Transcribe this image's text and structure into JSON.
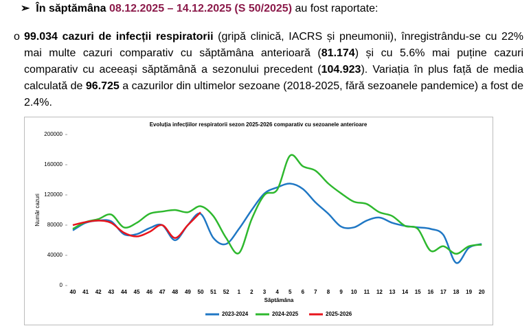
{
  "header": {
    "bullet": "➢",
    "lead": "În săptămâna",
    "period": "08.12.2025 – 14.12.2025 (S 50/2025)",
    "tail": "au fost raportate:"
  },
  "paragraph": {
    "bullet": "o",
    "segments": [
      "99.034 cazuri de infecții respiratorii",
      " (gripă clinică, IACRS și pneumonii), înregistrându-se cu 22% mai multe cazuri comparativ cu săptămâna anterioară (",
      "81.174",
      ") și cu 5.6% mai puține cazuri comparativ cu aceeași săptămână a sezonului precedent (",
      "104.923",
      "). Variația în plus față de media calculată de ",
      "96.725",
      " a cazurilor din ultimelor sezoane (2018-2025, fără sezoanele pandemice) a fost de 2.4%."
    ]
  },
  "chart_data": {
    "type": "line",
    "title": "Evoluția infecțiilor respiratorii sezon 2025-2026 comparativ cu sezoanele anterioare",
    "x_label": "Săptămâna",
    "y_label": "Număr cazuri",
    "categories": [
      "40",
      "41",
      "42",
      "43",
      "44",
      "45",
      "46",
      "47",
      "48",
      "49",
      "50",
      "51",
      "52",
      "1",
      "2",
      "3",
      "4",
      "5",
      "6",
      "7",
      "8",
      "9",
      "10",
      "11",
      "12",
      "13",
      "14",
      "15",
      "16",
      "17",
      "18",
      "19",
      "20"
    ],
    "series": [
      {
        "name": "2023-2024",
        "color": "#1f77c4",
        "values": [
          73000,
          83000,
          86000,
          85000,
          68000,
          68000,
          76000,
          80000,
          60000,
          80000,
          95000,
          63000,
          55000,
          75000,
          100000,
          122000,
          130000,
          135000,
          128000,
          110000,
          95000,
          78000,
          77000,
          86000,
          90000,
          83000,
          79000,
          77000,
          75000,
          67000,
          30000,
          50000,
          55000
        ]
      },
      {
        "name": "2024-2025",
        "color": "#2eb82e",
        "values": [
          75000,
          84000,
          88000,
          94000,
          77000,
          83000,
          95000,
          98000,
          100000,
          97000,
          105000,
          92000,
          63000,
          43000,
          88000,
          120000,
          127000,
          172000,
          158000,
          152000,
          135000,
          122000,
          111000,
          108000,
          97000,
          92000,
          79000,
          75000,
          46000,
          52000,
          42000,
          52000,
          54000
        ]
      },
      {
        "name": "2025-2026",
        "color": "#e8141c",
        "values": [
          80000,
          84000,
          86000,
          83000,
          70000,
          65000,
          71000,
          80000,
          63000,
          80000,
          97000,
          null,
          null,
          null,
          null,
          null,
          null,
          null,
          null,
          null,
          null,
          null,
          null,
          null,
          null,
          null,
          null,
          null,
          null,
          null,
          null,
          null,
          null
        ]
      }
    ],
    "ylim": [
      0,
      200000
    ],
    "yticks": [
      0,
      40000,
      80000,
      120000,
      160000,
      200000
    ],
    "grid": false,
    "legend": "bottom"
  }
}
